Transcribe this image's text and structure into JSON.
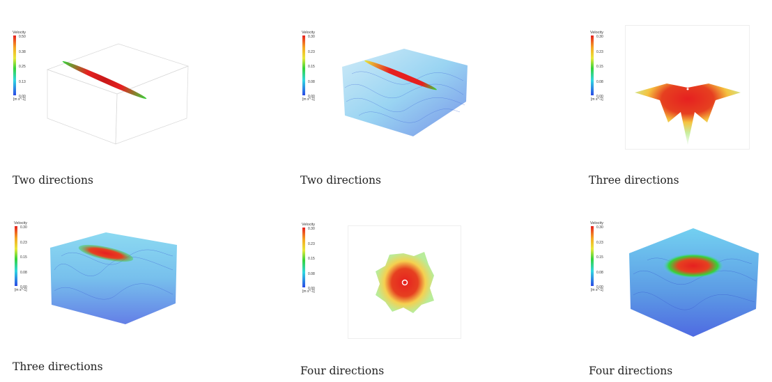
{
  "panels": [
    {
      "caption": "Two directions",
      "legend": {
        "title": "Velocity",
        "ticks": [
          "0.50",
          "0.38",
          "0.25",
          "0.13",
          "0.00"
        ],
        "unit": "[m s^-1]"
      }
    },
    {
      "caption": "Two directions",
      "legend": {
        "title": "Velocity",
        "ticks": [
          "0.30",
          "0.23",
          "0.15",
          "0.08",
          "0.00"
        ],
        "unit": "[m s^-1]"
      }
    },
    {
      "caption": "Three directions",
      "legend": {
        "title": "Velocity",
        "ticks": [
          "0.30",
          "0.23",
          "0.15",
          "0.08",
          "0.00"
        ],
        "unit": "[m s^-1]"
      }
    },
    {
      "caption": "Three directions",
      "legend": {
        "title": "Velocity",
        "ticks": [
          "0.30",
          "0.23",
          "0.15",
          "0.08",
          "0.00"
        ],
        "unit": "[m s^-1]"
      }
    },
    {
      "caption": "Four directions",
      "legend": {
        "title": "Velocity",
        "ticks": [
          "0.30",
          "0.23",
          "0.15",
          "0.08",
          "0.00"
        ],
        "unit": "[m s^-1]"
      }
    },
    {
      "caption": "Four directions",
      "legend": {
        "title": "Velocity",
        "ticks": [
          "0.30",
          "0.23",
          "0.15",
          "0.08",
          "0.00"
        ],
        "unit": "[m s^-1]"
      }
    }
  ],
  "colors": {
    "high": "#e62020",
    "mid": "#35d43a",
    "low": "#2b49e6",
    "stream": "#5ab8e6"
  }
}
